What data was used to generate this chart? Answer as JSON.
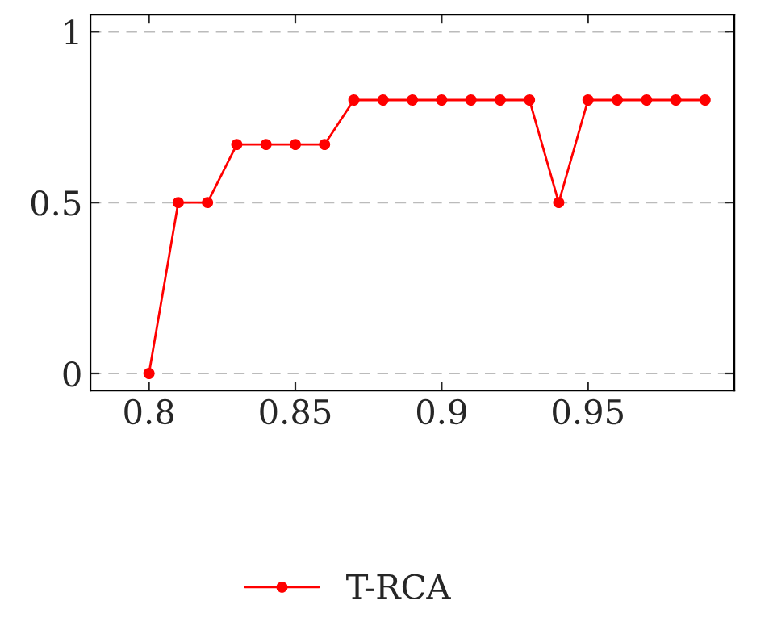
{
  "chart_data": {
    "type": "line",
    "x": [
      0.8,
      0.81,
      0.82,
      0.83,
      0.84,
      0.85,
      0.86,
      0.87,
      0.88,
      0.89,
      0.9,
      0.91,
      0.92,
      0.93,
      0.94,
      0.95,
      0.96,
      0.97,
      0.98,
      0.99
    ],
    "series": [
      {
        "name": "T-RCA",
        "color": "#ff0000",
        "values": [
          0,
          0.5,
          0.5,
          0.67,
          0.67,
          0.67,
          0.67,
          0.8,
          0.8,
          0.8,
          0.8,
          0.8,
          0.8,
          0.8,
          0.5,
          0.8,
          0.8,
          0.8,
          0.8,
          0.8
        ]
      }
    ],
    "xlim": [
      0.78,
      1.0
    ],
    "xticks": [
      0.8,
      0.85,
      0.9,
      0.95
    ],
    "ylim": [
      -0.05,
      1.05
    ],
    "yticks": [
      0,
      0.5,
      1
    ],
    "grid": "y",
    "legend": "bottom",
    "marker": "circle",
    "line_style": "solid"
  }
}
